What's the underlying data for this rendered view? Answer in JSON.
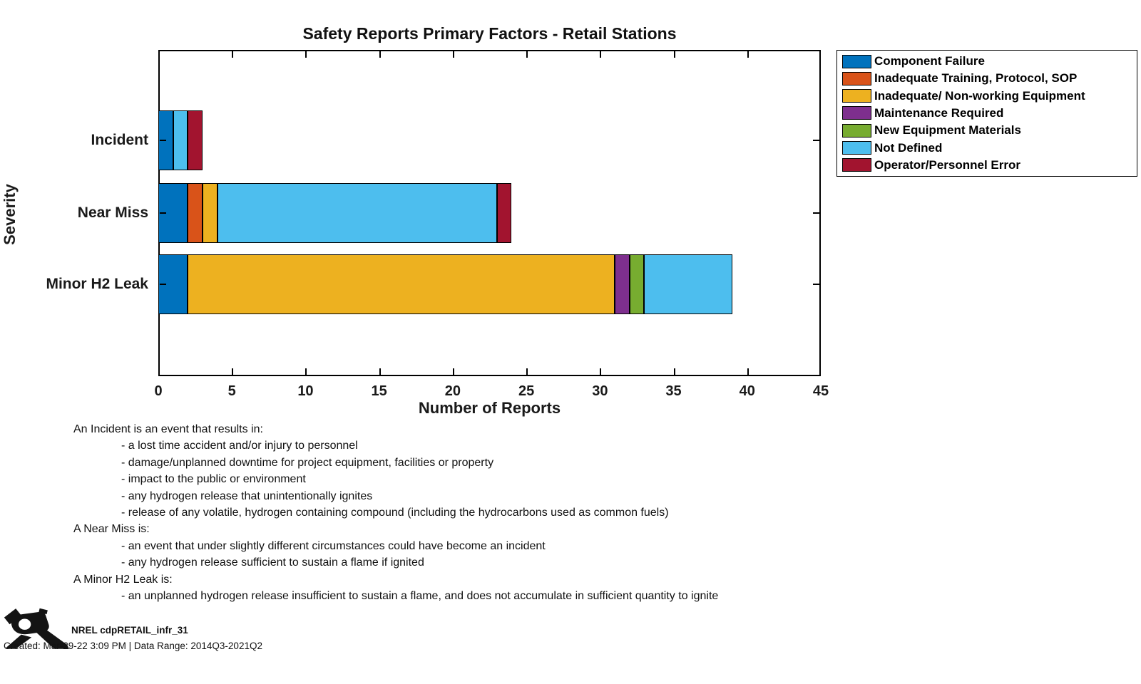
{
  "title": "Safety Reports Primary Factors - Retail Stations",
  "chart_data": {
    "type": "bar",
    "orientation": "horizontal",
    "stacked": true,
    "title": "Safety Reports Primary Factors - Retail Stations",
    "xlabel": "Number of Reports",
    "ylabel": "Severity",
    "categories": [
      "Incident",
      "Near Miss",
      "Minor H2 Leak"
    ],
    "series": [
      {
        "name": "Component Failure",
        "color": "#0072BD",
        "values": [
          1,
          2,
          2
        ]
      },
      {
        "name": "Inadequate Training, Protocol, SOP",
        "color": "#D95319",
        "values": [
          0,
          1,
          0
        ]
      },
      {
        "name": "Inadequate/ Non-working Equipment",
        "color": "#EDB120",
        "values": [
          0,
          1,
          29
        ]
      },
      {
        "name": "Maintenance Required",
        "color": "#7E2F8E",
        "values": [
          0,
          0,
          1
        ]
      },
      {
        "name": "New Equipment Materials",
        "color": "#77AC30",
        "values": [
          0,
          0,
          1
        ]
      },
      {
        "name": "Not Defined",
        "color": "#4DBEEE",
        "values": [
          1,
          19,
          6
        ]
      },
      {
        "name": "Operator/Personnel Error",
        "color": "#A2142F",
        "values": [
          1,
          1,
          0
        ]
      }
    ],
    "category_totals": [
      3,
      24,
      39
    ],
    "xlim": [
      0,
      45
    ],
    "xticks": [
      0,
      5,
      10,
      15,
      20,
      25,
      30,
      35,
      40,
      45
    ],
    "grid": false,
    "legend_position": "outside-top-right",
    "axis_color": "#000000"
  },
  "definitions": {
    "lines": [
      {
        "indent": 0,
        "text": "An Incident is an event that results in:"
      },
      {
        "indent": 1,
        "text": "- a lost time accident and/or injury to personnel"
      },
      {
        "indent": 1,
        "text": "- damage/unplanned downtime for project equipment, facilities or property"
      },
      {
        "indent": 1,
        "text": "- impact to the public or environment"
      },
      {
        "indent": 1,
        "text": "- any hydrogen release that unintentionally ignites"
      },
      {
        "indent": 1,
        "text": "- release of any volatile, hydrogen containing compound (including the hydrocarbons used as common fuels)"
      },
      {
        "indent": 0,
        "text": "A Near Miss is:"
      },
      {
        "indent": 1,
        "text": "- an event that under slightly different circumstances could have become an incident"
      },
      {
        "indent": 1,
        "text": "- any hydrogen release sufficient to sustain a flame if ignited"
      },
      {
        "indent": 0,
        "text": "A Minor H2 Leak is:"
      },
      {
        "indent": 1,
        "text": "- an unplanned hydrogen release insufficient to sustain a flame, and does not accumulate in sufficient quantity to ignite"
      }
    ]
  },
  "footer": {
    "report_id": "NREL cdpRETAIL_infr_31",
    "created": "Created: Mar-29-22  3:09 PM | Data Range: 2014Q3-2021Q2",
    "icon": "fuel-nozzle-icon"
  }
}
